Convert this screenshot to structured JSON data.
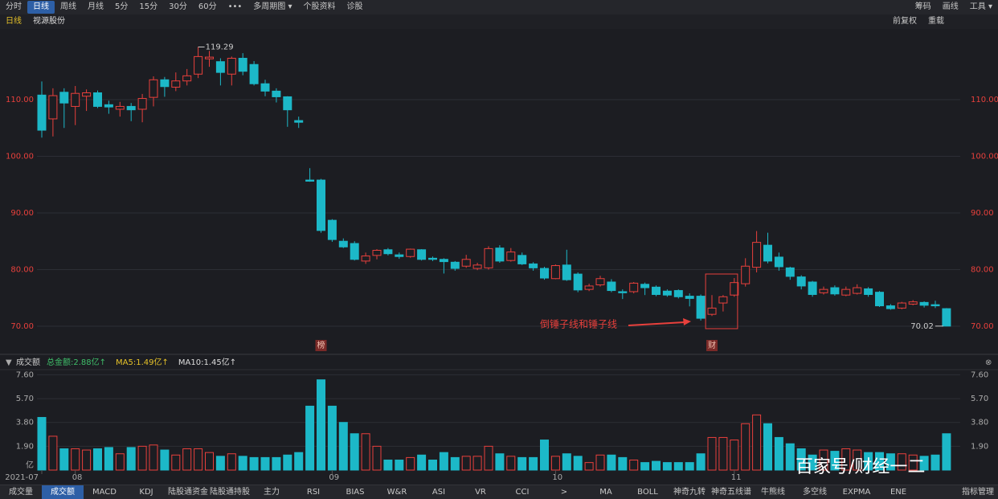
{
  "toolbar": {
    "left": [
      "分时",
      "日线",
      "周线",
      "月线",
      "5分",
      "15分",
      "30分",
      "60分",
      "•••",
      "多周期图 ▾",
      "个股资料",
      "诊股"
    ],
    "active": 1,
    "right": [
      "筹码",
      "画线",
      "工具 ▾"
    ]
  },
  "header": {
    "period": "日线",
    "stock": "视源股份",
    "right": [
      "前复权",
      "重载"
    ]
  },
  "chart_data": [
    {
      "type": "candlestick",
      "categories": [
        "2021-07",
        null,
        null,
        "08",
        null,
        null,
        null,
        null,
        null,
        null,
        null,
        null,
        null,
        null,
        null,
        null,
        null,
        null,
        null,
        null,
        null,
        null,
        null,
        null,
        null,
        null,
        "09",
        null,
        null,
        null,
        null,
        null,
        null,
        null,
        null,
        null,
        null,
        null,
        null,
        null,
        null,
        null,
        null,
        null,
        null,
        null,
        "10",
        null,
        null,
        null,
        null,
        null,
        null,
        null,
        null,
        null,
        null,
        null,
        null,
        null,
        null,
        null,
        "11",
        null,
        null,
        null,
        null,
        null,
        null,
        null,
        null,
        null,
        null,
        null,
        null,
        null,
        null,
        null,
        null,
        null,
        null,
        null
      ],
      "open": [
        110.8,
        106.6,
        111.3,
        108.8,
        110.6,
        111.2,
        109.1,
        108.3,
        108.8,
        108.3,
        110.4,
        113.5,
        112.2,
        113.3,
        114.5,
        117.2,
        116.7,
        114.5,
        117.3,
        116.2,
        112.8,
        111.5,
        110.5,
        106.3,
        95.8,
        95.8,
        88.7,
        85,
        84.6,
        81.5,
        82.5,
        83.5,
        82.6,
        82.3,
        83.5,
        82,
        81.8,
        81.3,
        80.6,
        80.2,
        80.3,
        83.8,
        81.6,
        82.5,
        81,
        80.2,
        78.4,
        80.8,
        79.2,
        76.5,
        77.3,
        77.8,
        76.1,
        76.1,
        77.4,
        76.9,
        76.2,
        76.3,
        75.3,
        75.3,
        72.1,
        74.1,
        75.5,
        77.5,
        80.4,
        84.3,
        82.2,
        80.3,
        78.7,
        77.8,
        75.9,
        76.8,
        75.5,
        75.8,
        76.6,
        76,
        73.6,
        73.2,
        73.9,
        74.2,
        73.8,
        73.1
      ],
      "high": [
        113.2,
        112,
        112,
        112.4,
        111.8,
        111.6,
        109.8,
        109.6,
        109.4,
        111,
        114.1,
        114,
        114.8,
        115.4,
        119.29,
        118.6,
        117.3,
        117.6,
        118.2,
        116.8,
        113.5,
        112,
        110.6,
        107,
        97.9,
        96,
        88.9,
        85.5,
        85,
        83,
        83.6,
        83.8,
        83,
        83.7,
        83.6,
        82.3,
        82,
        81.5,
        82.6,
        81.2,
        84.1,
        84.3,
        83.8,
        83,
        81.3,
        80.5,
        80.9,
        83.5,
        79.5,
        77.5,
        78.9,
        78.3,
        76.5,
        77.8,
        77.7,
        77.2,
        76.5,
        76.5,
        75.8,
        75.6,
        75.5,
        75.5,
        78.5,
        82,
        86.8,
        86.5,
        83,
        80.5,
        79,
        78,
        77,
        77.2,
        77,
        77.4,
        76.9,
        76.2,
        73.9,
        74.3,
        74.6,
        74.4,
        74.5,
        73.2
      ],
      "low": [
        103.3,
        103.5,
        105,
        105.5,
        108,
        108.5,
        107.5,
        107,
        106.2,
        106,
        108.8,
        110.5,
        111.5,
        112.5,
        113.8,
        115.8,
        112.5,
        112.5,
        114.3,
        112.5,
        110.6,
        109.5,
        105.2,
        105,
        95.5,
        86.5,
        84.9,
        83.8,
        81.6,
        81,
        81.8,
        82.5,
        81.9,
        82.1,
        81.6,
        81.5,
        79.3,
        79.8,
        80.3,
        79.9,
        80,
        81.2,
        81.4,
        80.8,
        79.8,
        78.2,
        78.3,
        78,
        76,
        76.2,
        77,
        76,
        74.8,
        75.8,
        75.5,
        75.3,
        75.2,
        74.9,
        73.5,
        71,
        71.8,
        72.6,
        75.2,
        77,
        79.5,
        81.1,
        79.8,
        78.2,
        76.5,
        75.2,
        75.6,
        75.4,
        75.3,
        75.6,
        75.2,
        73.4,
        72.9,
        73,
        73.7,
        73.3,
        73.2,
        70.02
      ],
      "close": [
        104.6,
        110.7,
        109.4,
        111.1,
        111.2,
        108.8,
        108.7,
        108.8,
        108.2,
        110.2,
        113.5,
        112.3,
        113.3,
        114.2,
        117.6,
        117.5,
        114.8,
        117.3,
        115,
        112.8,
        111.5,
        110.5,
        108.2,
        106,
        95.6,
        86.9,
        85.3,
        84,
        81.8,
        82.4,
        83.4,
        82.8,
        82.3,
        83.6,
        81.8,
        81.8,
        81.4,
        80.2,
        81.8,
        80.8,
        83.7,
        81.5,
        83.1,
        81,
        80.3,
        78.5,
        80.7,
        78.2,
        76.4,
        77.1,
        78.4,
        76.3,
        75.9,
        77.6,
        76.8,
        75.6,
        75.5,
        75.2,
        74.9,
        71.4,
        73.2,
        75.2,
        77.7,
        80.6,
        84.8,
        81.5,
        80.5,
        78.8,
        77.1,
        75.6,
        76.5,
        75.7,
        76.5,
        76.8,
        75.6,
        73.6,
        73.1,
        74.1,
        74.3,
        73.7,
        73.6,
        70.02
      ],
      "ylim": [
        65.74,
        121.91
      ],
      "yticks": [
        {
          "value": 70,
          "label": "70.00"
        },
        {
          "value": 80,
          "label": "80.00"
        },
        {
          "value": 90,
          "label": "90.00"
        },
        {
          "value": 100,
          "label": "100.00"
        },
        {
          "value": 110,
          "label": "110.00"
        }
      ],
      "grid": true,
      "up_color": "#e8403c",
      "down_color": "#1cb8c8",
      "annotations": [
        {
          "text": "119.29"
        },
        {
          "text": "70.02"
        },
        {
          "text": "倒锤子线和锤子线",
          "color": "#e8403c"
        }
      ],
      "markers": [
        "榜",
        "财"
      ]
    },
    {
      "type": "bar",
      "title": "成交额",
      "legend": [
        {
          "text": "总金额:2.88亿↑",
          "color": "#3fbf6a"
        },
        {
          "text": "MA5:1.49亿↑",
          "color": "#e6c229"
        },
        {
          "text": "MA10:1.45亿↑",
          "color": "#dddddd"
        }
      ],
      "values": [
        4.2,
        2.7,
        1.7,
        1.7,
        1.6,
        1.7,
        1.8,
        1.3,
        1.8,
        1.9,
        2.0,
        1.6,
        1.2,
        1.7,
        1.7,
        1.4,
        1.1,
        1.3,
        1.1,
        1.0,
        1.0,
        1.0,
        1.2,
        1.4,
        5.1,
        7.2,
        5.1,
        3.8,
        2.9,
        2.9,
        1.9,
        0.8,
        0.8,
        1.0,
        1.2,
        0.8,
        1.4,
        1.0,
        1.1,
        1.1,
        1.9,
        1.3,
        1.1,
        1.0,
        1.0,
        2.4,
        1.1,
        1.3,
        1.1,
        0.6,
        1.2,
        1.2,
        1.0,
        0.8,
        0.6,
        0.7,
        0.6,
        0.6,
        0.6,
        1.3,
        2.6,
        2.6,
        2.4,
        3.7,
        4.4,
        3.7,
        2.6,
        2.1,
        1.7,
        1.2,
        1.6,
        1.5,
        1.7,
        1.6,
        1.4,
        1.4,
        1.3,
        1.3,
        1.2,
        1.1,
        1.2,
        2.9
      ],
      "ylim": [
        0,
        8.14
      ],
      "yticks": [
        {
          "value": 0,
          "label": "亿"
        },
        {
          "value": 1.9,
          "label": "1.90"
        },
        {
          "value": 3.8,
          "label": "3.80"
        },
        {
          "value": 5.7,
          "label": "5.70"
        },
        {
          "value": 7.6,
          "label": "7.60"
        }
      ],
      "grid": true
    }
  ],
  "tabs": {
    "items": [
      "成交量",
      "成交额",
      "MACD",
      "KDJ",
      "陆股通资金",
      "陆股通持股",
      "主力",
      "RSI",
      "BIAS",
      "W&R",
      "ASI",
      "VR",
      "CCI",
      ">",
      "MA",
      "BOLL",
      "神奇九转",
      "神奇五线谱",
      "牛熊线",
      "多空线",
      "EXPMA",
      "ENE"
    ],
    "active": 1,
    "manage": "指标管理"
  },
  "watermark": "百家号/财经一二"
}
